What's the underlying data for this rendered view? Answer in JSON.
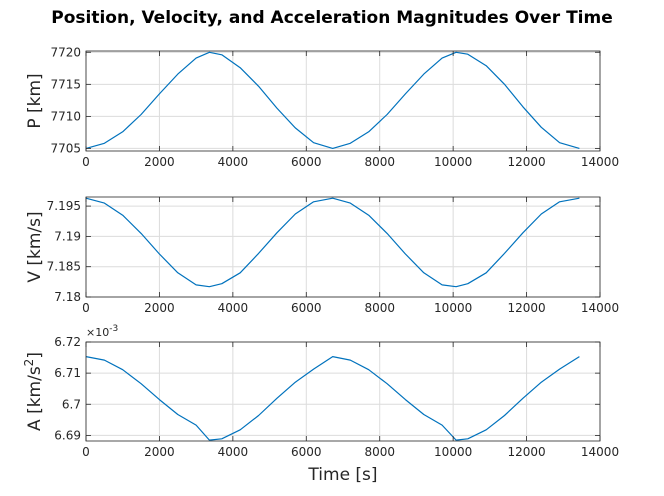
{
  "figure": {
    "title": "Position, Velocity, and Acceleration Magnitudes Over Time"
  },
  "style": {
    "line_color": "#0072BD",
    "grid_color": "#dcdcdc",
    "axis_color": "#262626"
  },
  "chart_data": [
    {
      "type": "line",
      "title": "",
      "xlabel": "",
      "ylabel": "P [km]",
      "xlim": [
        0,
        14000
      ],
      "ylim": [
        7704.6,
        7720.2
      ],
      "xticks": [
        0,
        2000,
        4000,
        6000,
        8000,
        10000,
        12000,
        14000
      ],
      "yticks": [
        7705,
        7710,
        7715,
        7720
      ],
      "ytick_labels": [
        "7705",
        "7710",
        "7715",
        "7720"
      ],
      "grid": true,
      "series": [
        {
          "x": [
            0,
            500,
            1000,
            1500,
            2000,
            2500,
            3000,
            3360,
            3700,
            4200,
            4700,
            5200,
            5700,
            6200,
            6720,
            7200,
            7700,
            8200,
            8700,
            9200,
            9700,
            10080,
            10400,
            10900,
            11400,
            11900,
            12400,
            12900,
            13440
          ],
          "values": [
            7705.0,
            7705.8,
            7707.6,
            7710.3,
            7713.5,
            7716.6,
            7719.1,
            7720.0,
            7719.6,
            7717.6,
            7714.7,
            7711.3,
            7708.2,
            7705.9,
            7705.0,
            7705.8,
            7707.6,
            7710.3,
            7713.5,
            7716.6,
            7719.1,
            7720.0,
            7719.7,
            7717.9,
            7715.0,
            7711.5,
            7708.3,
            7705.9,
            7705.0
          ]
        }
      ]
    },
    {
      "type": "line",
      "title": "",
      "xlabel": "",
      "ylabel": "V [km/s]",
      "xlim": [
        0,
        14000
      ],
      "ylim": [
        7.18,
        7.1965
      ],
      "xticks": [
        0,
        2000,
        4000,
        6000,
        8000,
        10000,
        12000,
        14000
      ],
      "yticks": [
        7.18,
        7.185,
        7.19,
        7.195
      ],
      "ytick_labels": [
        "7.18",
        "7.185",
        "7.19",
        "7.195"
      ],
      "grid": true,
      "series": [
        {
          "x": [
            0,
            500,
            1000,
            1500,
            2000,
            2500,
            3000,
            3360,
            3700,
            4200,
            4700,
            5200,
            5700,
            6200,
            6720,
            7200,
            7700,
            8200,
            8700,
            9200,
            9700,
            10080,
            10400,
            10900,
            11400,
            11900,
            12400,
            12900,
            13440
          ],
          "values": [
            7.1963,
            7.1955,
            7.1935,
            7.1905,
            7.1871,
            7.184,
            7.182,
            7.1817,
            7.1822,
            7.184,
            7.1872,
            7.1906,
            7.1937,
            7.1957,
            7.1963,
            7.1955,
            7.1935,
            7.1905,
            7.1871,
            7.184,
            7.182,
            7.1817,
            7.1822,
            7.184,
            7.1872,
            7.1906,
            7.1937,
            7.1957,
            7.1963
          ]
        }
      ]
    },
    {
      "type": "line",
      "title": "",
      "xlabel": "Time [s]",
      "ylabel": "A [km/s",
      "ylabel_sup": "2",
      "ylabel_end": "]",
      "exponent_label": "×10",
      "exponent_power": "-3",
      "xlim": [
        0,
        14000
      ],
      "ylim": [
        6.6882,
        6.72
      ],
      "xticks": [
        0,
        2000,
        4000,
        6000,
        8000,
        10000,
        12000,
        14000
      ],
      "yticks": [
        6.69,
        6.7,
        6.71,
        6.72
      ],
      "ytick_labels": [
        "6.69",
        "6.7",
        "6.71",
        "6.72"
      ],
      "grid": true,
      "series": [
        {
          "x": [
            0,
            500,
            1000,
            1500,
            2000,
            2500,
            3000,
            3360,
            3700,
            4200,
            4700,
            5200,
            5700,
            6200,
            6720,
            7200,
            7700,
            8200,
            8700,
            9200,
            9700,
            10080,
            10400,
            10900,
            11400,
            11900,
            12400,
            12900,
            13440
          ],
          "values": [
            6.7153,
            6.7142,
            6.7111,
            6.7066,
            6.7015,
            6.6967,
            6.6933,
            6.6885,
            6.6889,
            6.6918,
            6.6964,
            6.7019,
            6.7071,
            6.7113,
            6.7153,
            6.7142,
            6.7111,
            6.7066,
            6.7015,
            6.6967,
            6.6933,
            6.6885,
            6.6889,
            6.6918,
            6.6964,
            6.7019,
            6.7071,
            6.7113,
            6.7153
          ]
        }
      ]
    }
  ]
}
